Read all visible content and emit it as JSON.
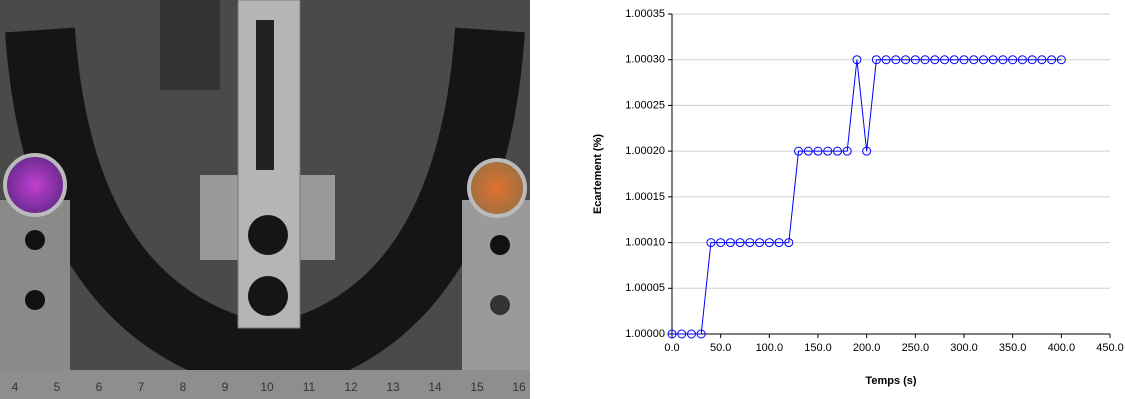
{
  "photo": {
    "ruler_labels": [
      "4",
      "5",
      "6",
      "7",
      "8",
      "9",
      "10",
      "11",
      "12",
      "13",
      "14",
      "15",
      "16"
    ]
  },
  "chart_data": {
    "type": "line",
    "x_label": "Temps (s)",
    "y_label": "Ecartement (%)",
    "x": [
      0,
      10,
      20,
      30,
      40,
      50,
      60,
      70,
      80,
      90,
      100,
      110,
      120,
      130,
      140,
      150,
      160,
      170,
      180,
      190,
      200,
      210,
      220,
      230,
      240,
      250,
      260,
      270,
      280,
      290,
      300,
      310,
      320,
      330,
      340,
      350,
      360,
      370,
      380,
      390,
      400
    ],
    "series": [
      {
        "color": "#0000ff",
        "values": [
          1.0,
          1.0,
          1.0,
          1.0,
          1.0001,
          1.0001,
          1.0001,
          1.0001,
          1.0001,
          1.0001,
          1.0001,
          1.0001,
          1.0001,
          1.0002,
          1.0002,
          1.0002,
          1.0002,
          1.0002,
          1.0002,
          1.0003,
          1.0002,
          1.0003,
          1.0003,
          1.0003,
          1.0003,
          1.0003,
          1.0003,
          1.0003,
          1.0003,
          1.0003,
          1.0003,
          1.0003,
          1.0003,
          1.0003,
          1.0003,
          1.0003,
          1.0003,
          1.0003,
          1.0003,
          1.0003,
          1.0003
        ]
      }
    ],
    "xlim": [
      0,
      450
    ],
    "xticks": [
      {
        "value": 0,
        "label": "0.0"
      },
      {
        "value": 50,
        "label": "50.0"
      },
      {
        "value": 100,
        "label": "100.0"
      },
      {
        "value": 150,
        "label": "150.0"
      },
      {
        "value": 200,
        "label": "200.0"
      },
      {
        "value": 250,
        "label": "250.0"
      },
      {
        "value": 300,
        "label": "300.0"
      },
      {
        "value": 350,
        "label": "350.0"
      },
      {
        "value": 400,
        "label": "400.0"
      },
      {
        "value": 450,
        "label": "450.0"
      }
    ],
    "ylim": [
      1.0,
      1.00035
    ],
    "yticks": [
      {
        "value": 1.0,
        "label": "1.00000"
      },
      {
        "value": 1.00005,
        "label": "1.00005"
      },
      {
        "value": 1.0001,
        "label": "1.00010"
      },
      {
        "value": 1.00015,
        "label": "1.00015"
      },
      {
        "value": 1.0002,
        "label": "1.00020"
      },
      {
        "value": 1.00025,
        "label": "1.00025"
      },
      {
        "value": 1.0003,
        "label": "1.00030"
      },
      {
        "value": 1.00035,
        "label": "1.00035"
      }
    ],
    "grid": true
  }
}
